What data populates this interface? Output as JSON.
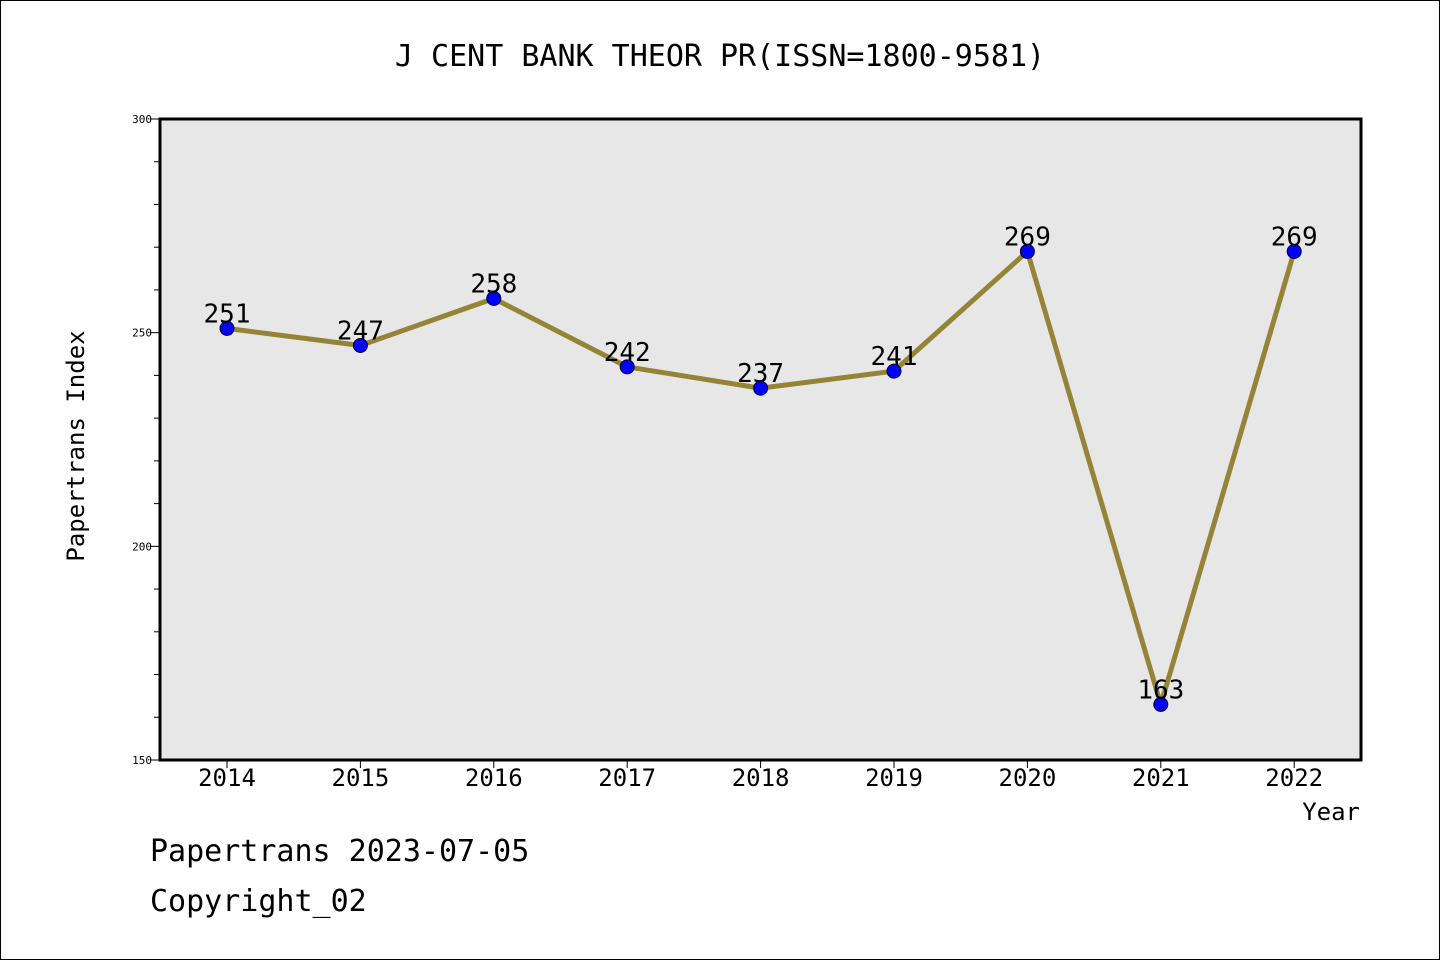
{
  "footer": {
    "watermark": "Papertrans 2023-07-05",
    "copyright": "Copyright_02"
  },
  "colors": {
    "plot_background": "#e7e7e7",
    "line": "#958437",
    "marker": "#0000ff"
  },
  "chart_data": {
    "type": "line",
    "title": "J CENT BANK THEOR PR(ISSN=1800-9581)",
    "xlabel": "Year",
    "ylabel": "Papertrans Index",
    "categories": [
      "2014",
      "2015",
      "2016",
      "2017",
      "2018",
      "2019",
      "2020",
      "2021",
      "2022"
    ],
    "series": [
      {
        "values": [
          251,
          247,
          258,
          242,
          237,
          241,
          269,
          163,
          269
        ]
      }
    ],
    "ylim": [
      150,
      300
    ],
    "yticks": [
      150,
      200,
      250,
      300
    ],
    "grid": false,
    "legend": "none"
  }
}
